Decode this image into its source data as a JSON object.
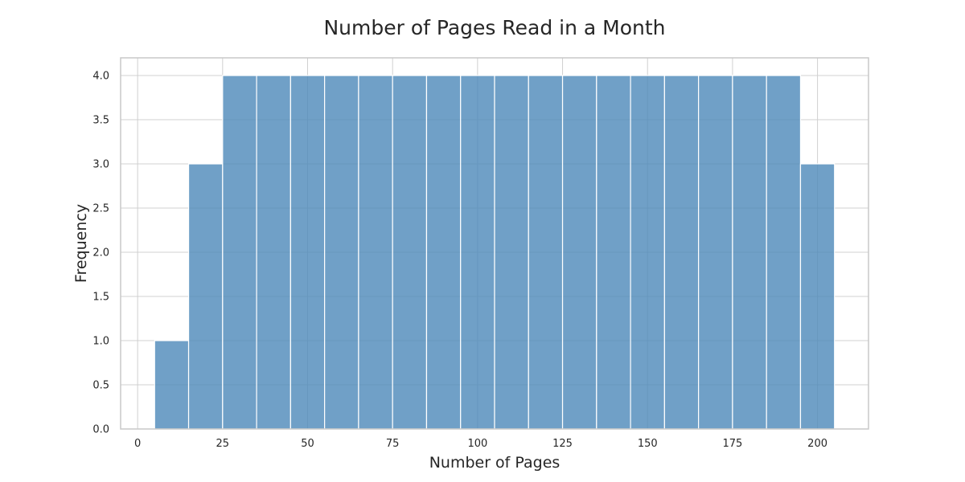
{
  "chart_data": {
    "type": "bar",
    "subtype": "histogram",
    "title": "Number of Pages Read in a Month",
    "xlabel": "Number of Pages",
    "ylabel": "Frequency",
    "xlim": [
      -5,
      215
    ],
    "ylim": [
      0,
      4.2
    ],
    "xticks": [
      0,
      25,
      50,
      75,
      100,
      125,
      150,
      175,
      200
    ],
    "yticks": [
      0.0,
      0.5,
      1.0,
      1.5,
      2.0,
      2.5,
      3.0,
      3.5,
      4.0
    ],
    "ytick_labels": [
      "0.0",
      "0.5",
      "1.0",
      "1.5",
      "2.0",
      "2.5",
      "3.0",
      "3.5",
      "4.0"
    ],
    "bin_edges": [
      5,
      15,
      25,
      35,
      45,
      55,
      65,
      75,
      85,
      95,
      105,
      115,
      125,
      135,
      145,
      155,
      165,
      175,
      185,
      195,
      205
    ],
    "values": [
      1,
      3,
      4,
      4,
      4,
      4,
      4,
      4,
      4,
      4,
      4,
      4,
      4,
      4,
      4,
      4,
      4,
      4,
      4,
      3
    ],
    "grid": true,
    "colors": {
      "bar": "#4c88b9",
      "bar_opacity": 0.8
    }
  }
}
